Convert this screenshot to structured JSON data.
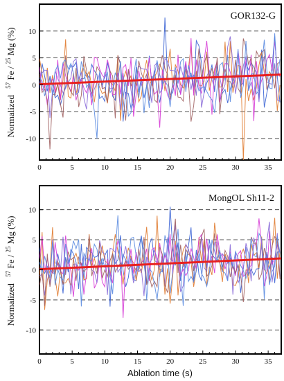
{
  "chart_data": [
    {
      "type": "line",
      "panel_label": "GOR132-G",
      "ylabel_prefix": "Normalized",
      "ylabel_parts": [
        "57",
        "Fe /",
        "25",
        "Mg (%)"
      ],
      "xlabel": "",
      "xlim": [
        0,
        37
      ],
      "ylim": [
        -14,
        15
      ],
      "xticks": [
        0,
        5,
        10,
        15,
        20,
        25,
        30,
        35
      ],
      "yticks": [
        -10,
        -5,
        0,
        5,
        10
      ],
      "dashed_gridlines_y": [
        -10,
        -5,
        5,
        10
      ],
      "series_colors": [
        "#3a63d4",
        "#e07a2e",
        "#d63ad6",
        "#8a6ad8",
        "#a06060",
        "#5a8be0"
      ],
      "trend": {
        "x": [
          0,
          37
        ],
        "y": [
          0.1,
          1.9
        ],
        "color": "#e82020"
      },
      "seed": 11,
      "noise_sd": 3.0,
      "spikes": [
        [
          19,
          12.5
        ],
        [
          31,
          -14
        ],
        [
          18.5,
          -8
        ],
        [
          29,
          9
        ],
        [
          1.5,
          -12
        ],
        [
          9,
          -10
        ]
      ]
    },
    {
      "type": "line",
      "panel_label": "MongOL Sh11-2",
      "ylabel_prefix": "Normalized",
      "ylabel_parts": [
        "57",
        "Fe /",
        "25",
        "Mg (%)"
      ],
      "xlabel": "Ablation time (s)",
      "xlim": [
        0,
        37
      ],
      "ylim": [
        -14,
        14
      ],
      "xticks": [
        0,
        5,
        10,
        15,
        20,
        25,
        30,
        35
      ],
      "yticks": [
        -10,
        -5,
        0,
        5,
        10
      ],
      "dashed_gridlines_y": [
        -10,
        -5,
        5,
        10
      ],
      "series_colors": [
        "#3a63d4",
        "#e07a2e",
        "#d63ad6",
        "#8a6ad8",
        "#a06060",
        "#5a8be0"
      ],
      "trend": {
        "x": [
          0,
          37
        ],
        "y": [
          0.1,
          1.9
        ],
        "color": "#e82020"
      },
      "seed": 29,
      "noise_sd": 2.6,
      "spikes": [
        [
          20,
          10.5
        ],
        [
          18,
          9
        ],
        [
          13,
          -8
        ],
        [
          35,
          8
        ],
        [
          1,
          -6
        ],
        [
          22,
          -6
        ]
      ]
    }
  ]
}
